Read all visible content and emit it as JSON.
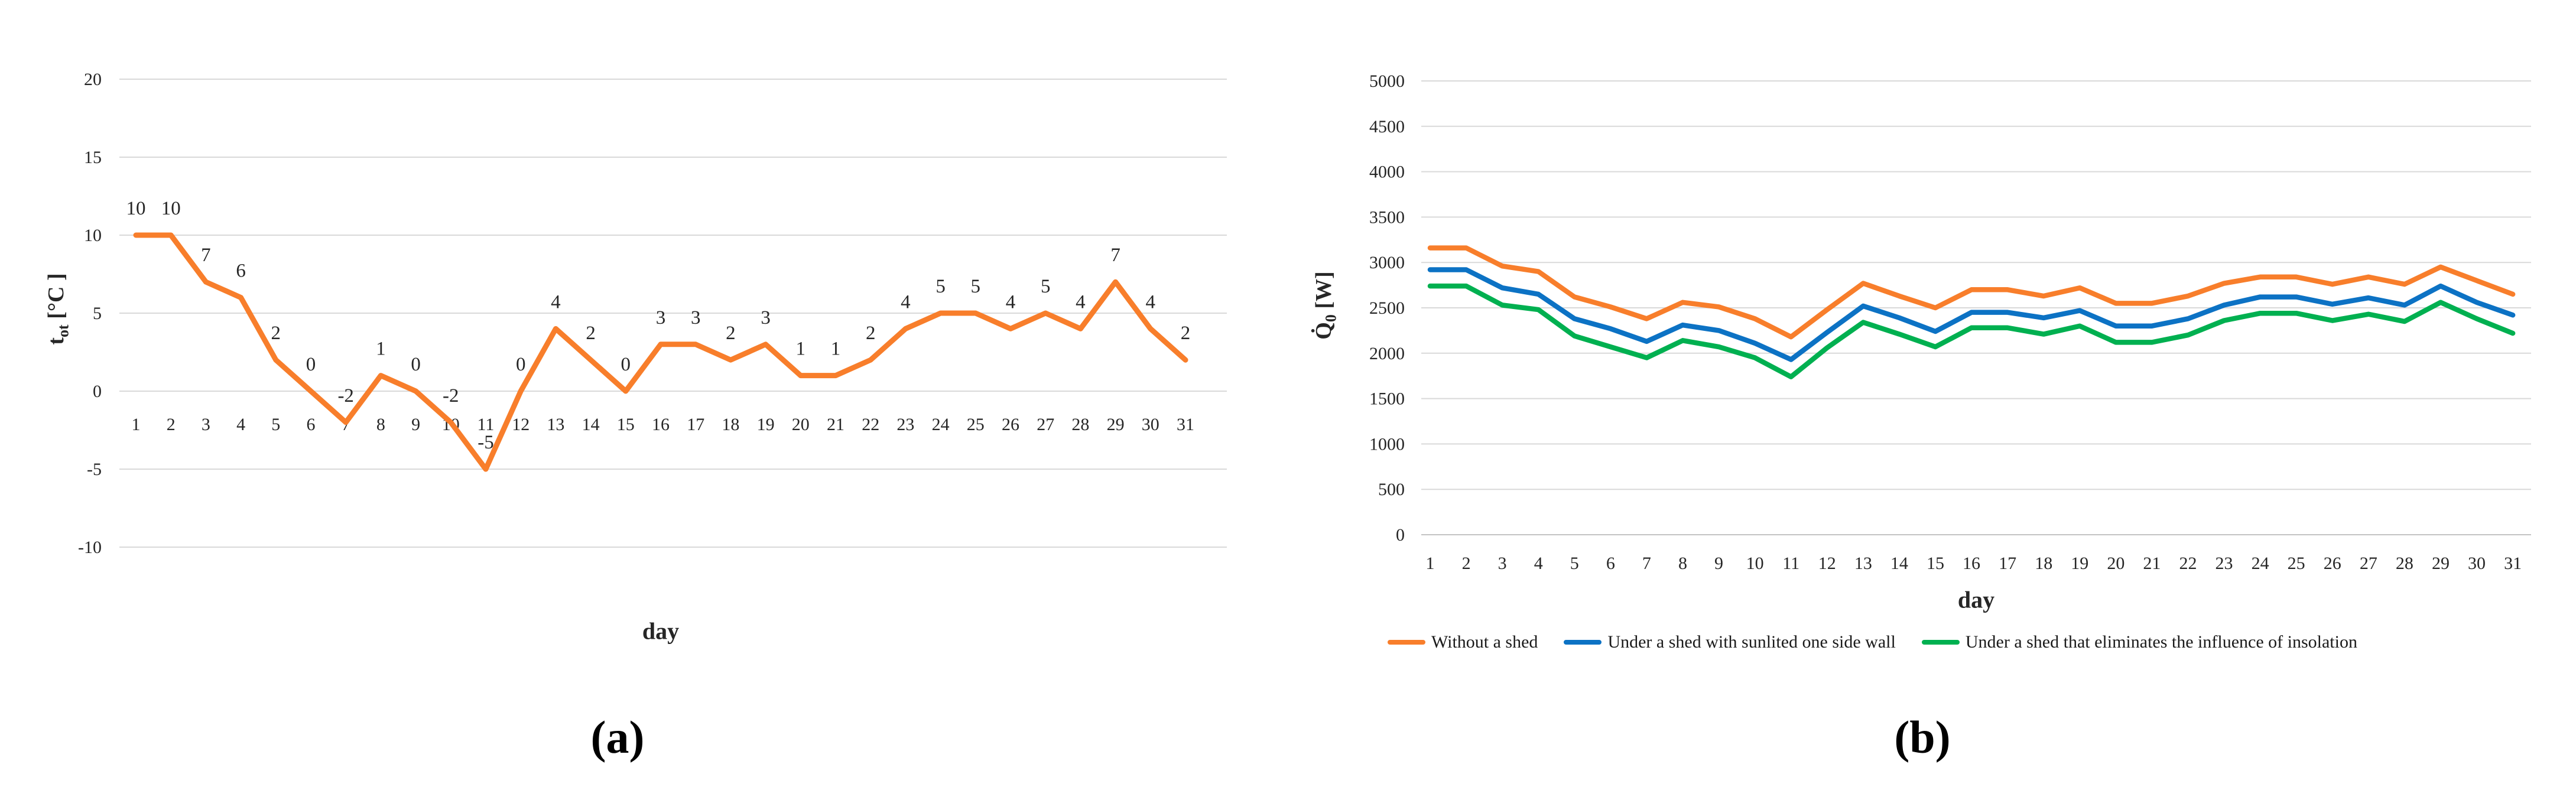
{
  "figure": {
    "panel_a": {
      "caption": "(a)",
      "xlabel": "day",
      "ylabel_main": "t",
      "ylabel_sub": "ot",
      "ylabel_unit": " [°C ]"
    },
    "panel_b": {
      "caption": "(b)",
      "xlabel": "day",
      "ylabel_main": "Q̇",
      "ylabel_sub": "0",
      "ylabel_unit": " [W]"
    },
    "legend": [
      {
        "label": "Without a shed",
        "color": "#F87E2B"
      },
      {
        "label": "Under a shed with sunlited one side wall",
        "color": "#0C72C4"
      },
      {
        "label": "Under a shed that eliminates the influence of insolation",
        "color": "#00B050"
      }
    ]
  },
  "chart_data": [
    {
      "id": "a",
      "type": "line",
      "title": "",
      "xlabel": "day",
      "ylabel": "t_ot [°C ]",
      "x": [
        1,
        2,
        3,
        4,
        5,
        6,
        7,
        8,
        9,
        10,
        11,
        12,
        13,
        14,
        15,
        16,
        17,
        18,
        19,
        20,
        21,
        22,
        23,
        24,
        25,
        26,
        27,
        28,
        29,
        30,
        31
      ],
      "yticks": [
        -10,
        -5,
        0,
        5,
        10,
        15,
        20
      ],
      "ylim": [
        -10,
        20
      ],
      "grid": "horizontal",
      "show_data_labels": true,
      "series": [
        {
          "name": "t_ot",
          "color": "#F87E2B",
          "values": [
            10,
            10,
            7,
            6,
            2,
            0,
            -2,
            1,
            0,
            -2,
            -5,
            0,
            4,
            2,
            0,
            3,
            3,
            2,
            3,
            1,
            1,
            2,
            4,
            5,
            5,
            4,
            5,
            4,
            7,
            4,
            2
          ]
        }
      ]
    },
    {
      "id": "b",
      "type": "line",
      "title": "",
      "xlabel": "day",
      "ylabel": "Q̇_0 [W]",
      "x": [
        1,
        2,
        3,
        4,
        5,
        6,
        7,
        8,
        9,
        10,
        11,
        12,
        13,
        14,
        15,
        16,
        17,
        18,
        19,
        20,
        21,
        22,
        23,
        24,
        25,
        26,
        27,
        28,
        29,
        30,
        31
      ],
      "yticks": [
        0,
        500,
        1000,
        1500,
        2000,
        2500,
        3000,
        3500,
        4000,
        4500,
        5000
      ],
      "ylim": [
        0,
        5000
      ],
      "grid": "horizontal",
      "show_data_labels": false,
      "legend_position": "bottom",
      "series": [
        {
          "name": "Without a shed",
          "color": "#F87E2B",
          "values": [
            3160,
            3160,
            2960,
            2900,
            2620,
            2510,
            2380,
            2560,
            2510,
            2380,
            2180,
            2480,
            2770,
            2630,
            2500,
            2700,
            2700,
            2630,
            2720,
            2550,
            2550,
            2630,
            2770,
            2840,
            2840,
            2760,
            2840,
            2760,
            2950,
            2800,
            2650
          ]
        },
        {
          "name": "Under a shed with sunlited one side wall",
          "color": "#0C72C4",
          "values": [
            2920,
            2920,
            2720,
            2650,
            2380,
            2270,
            2130,
            2310,
            2250,
            2110,
            1930,
            2230,
            2520,
            2390,
            2240,
            2450,
            2450,
            2390,
            2470,
            2300,
            2300,
            2380,
            2530,
            2620,
            2620,
            2540,
            2610,
            2530,
            2740,
            2560,
            2420
          ]
        },
        {
          "name": "Under a shed that eliminates the influence of insolation",
          "color": "#00B050",
          "values": [
            2740,
            2740,
            2530,
            2480,
            2190,
            2070,
            1950,
            2140,
            2070,
            1950,
            1740,
            2060,
            2340,
            2210,
            2070,
            2280,
            2280,
            2210,
            2300,
            2120,
            2120,
            2200,
            2360,
            2440,
            2440,
            2360,
            2430,
            2350,
            2560,
            2380,
            2220
          ]
        }
      ]
    }
  ]
}
